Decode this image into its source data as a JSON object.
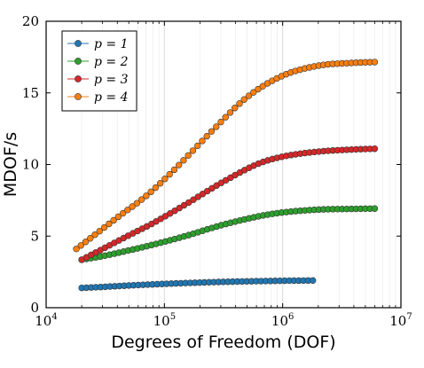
{
  "chart_data": {
    "type": "line",
    "xlabel": "Degrees of Freedom (DOF)",
    "ylabel": "MDOF/s",
    "x_scale": "log",
    "xlim": [
      10000,
      10000000
    ],
    "ylim": [
      0,
      20
    ],
    "y_ticks": [
      0,
      5,
      10,
      15,
      20
    ],
    "x_ticks": [
      {
        "value": 10000,
        "base": "10",
        "exp": "4"
      },
      {
        "value": 100000,
        "base": "10",
        "exp": "5"
      },
      {
        "value": 1000000,
        "base": "10",
        "exp": "6"
      },
      {
        "value": 10000000,
        "base": "10",
        "exp": "7"
      }
    ],
    "grid": {
      "x_major": true,
      "x_minor": true,
      "y": false
    },
    "legend_placement": "top-left",
    "series": [
      {
        "name": "p = 1",
        "color": "#1f77b4",
        "points": [
          [
            20000,
            1.38
          ],
          [
            30000,
            1.45
          ],
          [
            50000,
            1.55
          ],
          [
            80000,
            1.63
          ],
          [
            150000,
            1.72
          ],
          [
            300000,
            1.8
          ],
          [
            600000,
            1.85
          ],
          [
            1000000,
            1.88
          ],
          [
            1800000,
            1.9
          ]
        ]
      },
      {
        "name": "p = 2",
        "color": "#2ca02c",
        "points": [
          [
            20000,
            3.35
          ],
          [
            30000,
            3.6
          ],
          [
            50000,
            4.0
          ],
          [
            80000,
            4.4
          ],
          [
            150000,
            5.0
          ],
          [
            300000,
            5.75
          ],
          [
            600000,
            6.35
          ],
          [
            1000000,
            6.65
          ],
          [
            2000000,
            6.85
          ],
          [
            4000000,
            6.9
          ],
          [
            6000000,
            6.92
          ]
        ]
      },
      {
        "name": "p = 3",
        "color": "#d62728",
        "points": [
          [
            20000,
            3.35
          ],
          [
            30000,
            4.1
          ],
          [
            50000,
            5.05
          ],
          [
            80000,
            5.9
          ],
          [
            150000,
            7.2
          ],
          [
            300000,
            8.7
          ],
          [
            600000,
            10.0
          ],
          [
            1000000,
            10.55
          ],
          [
            2000000,
            10.9
          ],
          [
            4000000,
            11.05
          ],
          [
            6000000,
            11.1
          ]
        ]
      },
      {
        "name": "p = 4",
        "color": "#ff7f0e",
        "points": [
          [
            18000,
            4.1
          ],
          [
            25000,
            5.0
          ],
          [
            40000,
            6.3
          ],
          [
            70000,
            7.8
          ],
          [
            120000,
            9.6
          ],
          [
            250000,
            12.3
          ],
          [
            500000,
            14.7
          ],
          [
            1000000,
            16.2
          ],
          [
            2000000,
            16.9
          ],
          [
            4000000,
            17.1
          ],
          [
            6000000,
            17.15
          ]
        ]
      }
    ]
  }
}
